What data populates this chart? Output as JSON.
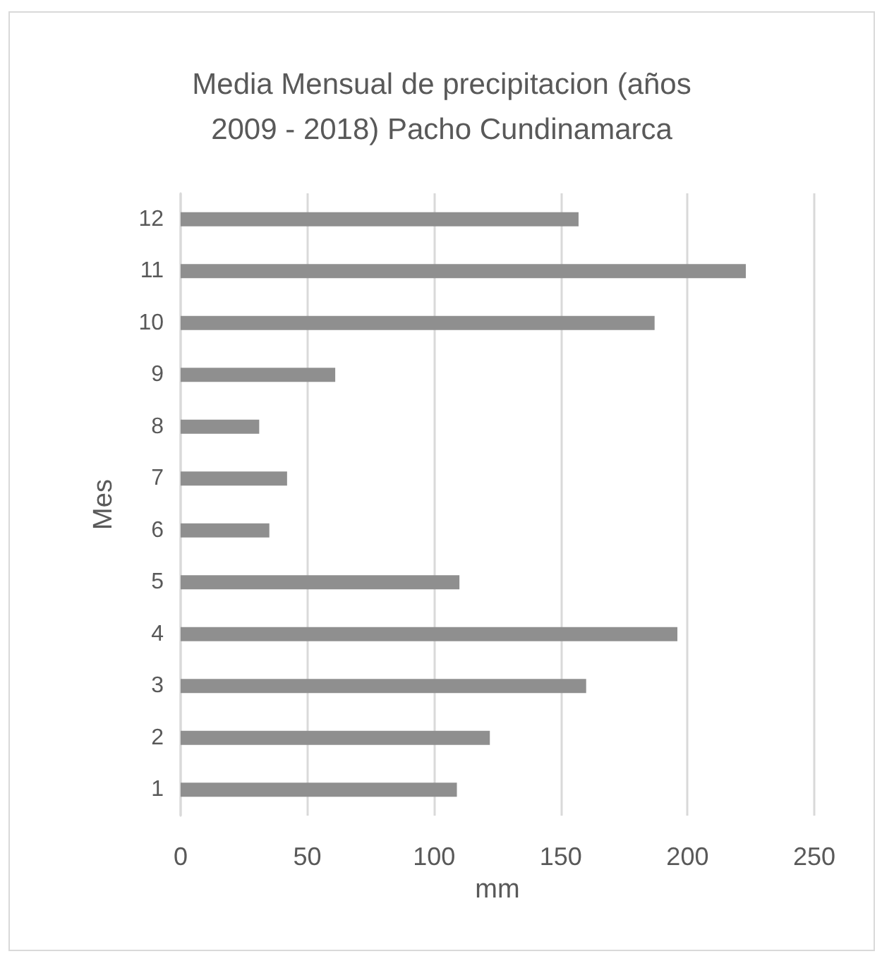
{
  "chart_data": {
    "type": "bar",
    "orientation": "horizontal",
    "title": "Media Mensual de precipitacion (años\n2009 - 2018) Pacho Cundinamarca",
    "xlabel": "mm",
    "ylabel": "Mes",
    "categories": [
      "12",
      "11",
      "10",
      "9",
      "8",
      "7",
      "6",
      "5",
      "4",
      "3",
      "2",
      "1"
    ],
    "values": [
      157,
      223,
      187,
      61,
      31,
      42,
      35,
      110,
      196,
      160,
      122,
      109
    ],
    "color": "#8f8f8f",
    "xlim": [
      0,
      250
    ],
    "xticks": [
      0,
      50,
      100,
      150,
      200,
      250
    ],
    "grid": "x"
  }
}
